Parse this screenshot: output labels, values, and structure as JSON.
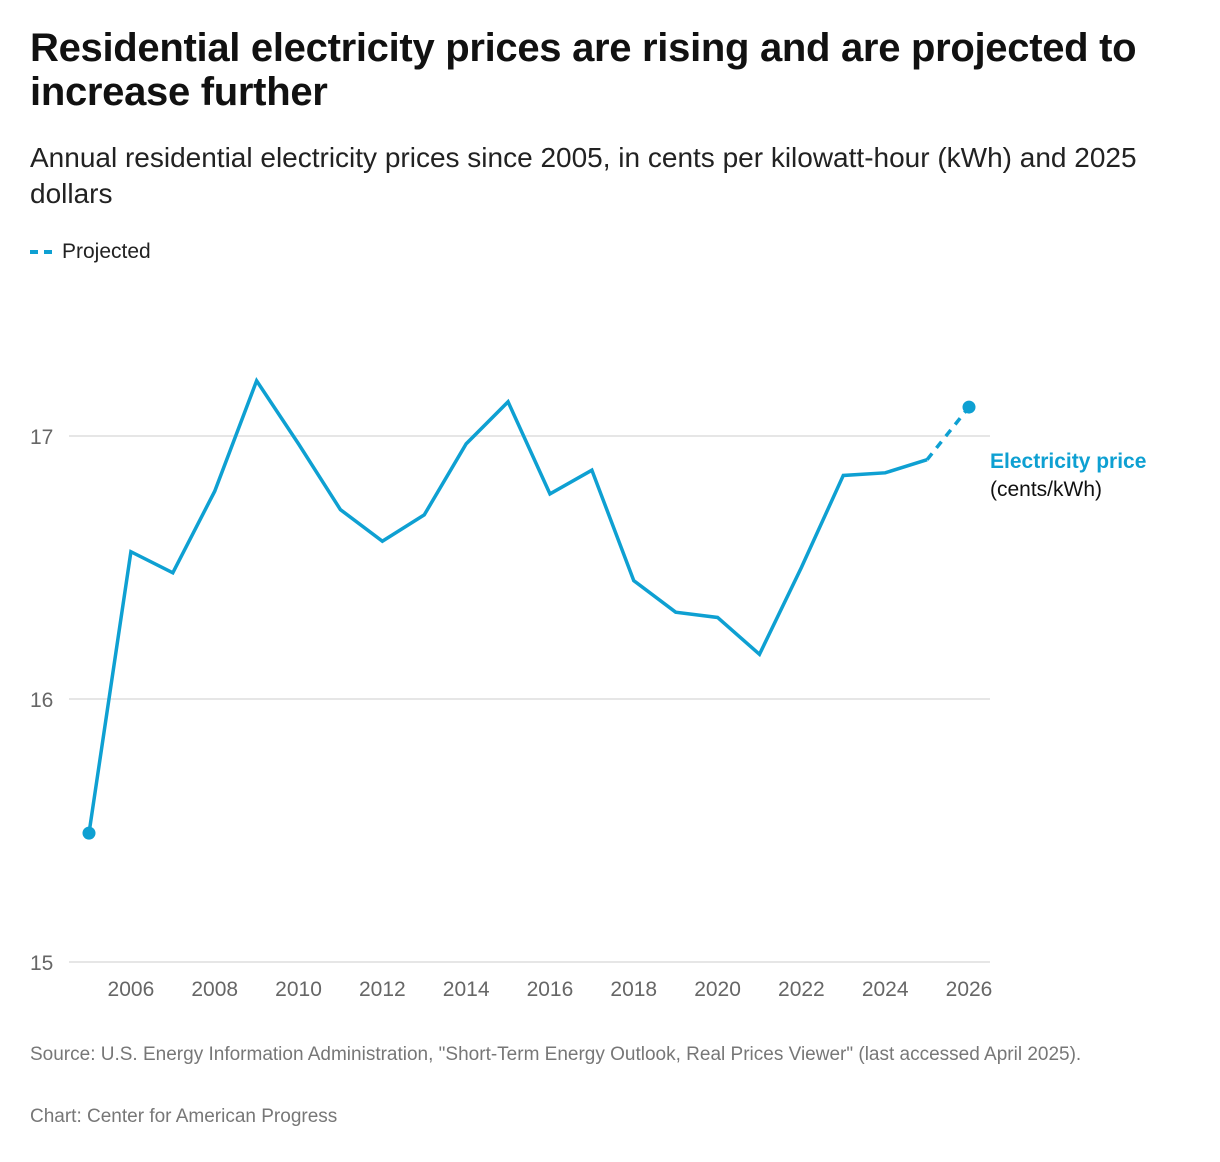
{
  "title": "Residential electricity prices are rising and are projected to increase further",
  "subtitle": "Annual residential electricity prices since 2005, in cents per kilowatt-hour (kWh) and 2025 dollars",
  "legend": {
    "projected_label": "Projected"
  },
  "series_label": {
    "name": "Electricity price",
    "unit": "(cents/kWh)"
  },
  "source": "Source: U.S. Energy Information Administration, \"Short-Term Energy Outlook, Real Prices Viewer\" (last accessed April 2025).",
  "credit": "Chart: Center for American Progress",
  "colors": {
    "line": "#0ea0d2",
    "grid": "#e6e6e6",
    "tick": "#666666"
  },
  "chart_data": {
    "type": "line",
    "title": "Residential electricity prices are rising and are projected to increase further",
    "subtitle": "Annual residential electricity prices since 2005, in cents per kilowatt-hour (kWh) and 2025 dollars",
    "xlabel": "",
    "ylabel": "",
    "x": [
      2005,
      2006,
      2007,
      2008,
      2009,
      2010,
      2011,
      2012,
      2013,
      2014,
      2015,
      2016,
      2017,
      2018,
      2019,
      2020,
      2021,
      2022,
      2023,
      2024,
      2025,
      2026
    ],
    "series": [
      {
        "name": "Electricity price (cents/kWh)",
        "values": [
          15.49,
          16.56,
          16.48,
          16.79,
          17.21,
          16.97,
          16.72,
          16.6,
          16.7,
          16.97,
          17.13,
          16.78,
          16.87,
          16.45,
          16.33,
          16.31,
          16.17,
          16.5,
          16.85,
          16.86,
          16.91,
          17.11
        ],
        "projected_from": 2025
      }
    ],
    "xlim": [
      2005,
      2026
    ],
    "ylim": [
      15,
      17.6
    ],
    "yticks": [
      15,
      16,
      17
    ],
    "xticks": [
      2006,
      2008,
      2010,
      2012,
      2014,
      2016,
      2018,
      2020,
      2022,
      2024,
      2026
    ],
    "grid": true,
    "legend": {
      "entries": [
        "Projected"
      ],
      "placement": "top-left"
    }
  }
}
